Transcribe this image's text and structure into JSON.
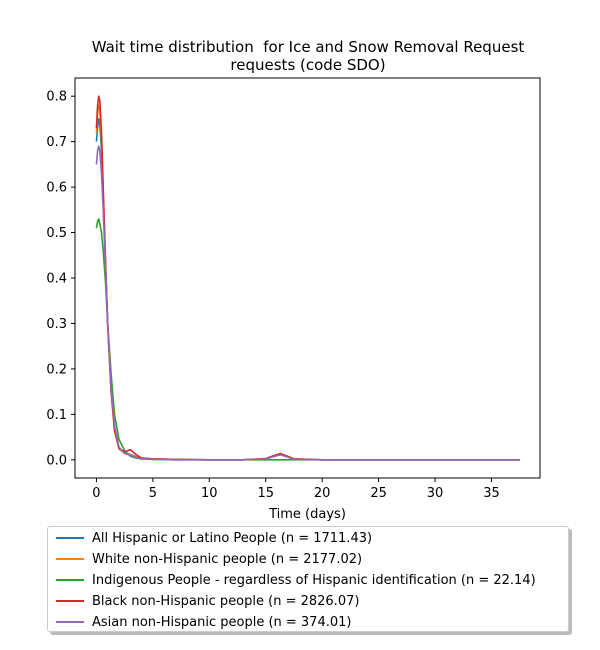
{
  "chart_data": {
    "type": "line",
    "title": "Wait time distribution  for Ice and Snow Removal Request\nrequests (code SDO)",
    "xlabel": "Time (days)",
    "ylabel": "",
    "xlim": [
      -1.9,
      39.3
    ],
    "ylim": [
      -0.04,
      0.84
    ],
    "xticks": [
      0,
      5,
      10,
      15,
      20,
      25,
      30,
      35
    ],
    "yticks": [
      0.0,
      0.1,
      0.2,
      0.3,
      0.4,
      0.5,
      0.6,
      0.7,
      0.8
    ],
    "xtick_labels": [
      "0",
      "5",
      "10",
      "15",
      "20",
      "25",
      "30",
      "35"
    ],
    "ytick_labels": [
      "0.0",
      "0.1",
      "0.2",
      "0.3",
      "0.4",
      "0.5",
      "0.6",
      "0.7",
      "0.8"
    ],
    "grid": false,
    "legend_position": "below",
    "series": [
      {
        "name": "All Hispanic or Latino People (n = 1711.43)",
        "color": "#1f77b4",
        "x": [
          0,
          0.1,
          0.2,
          0.3,
          0.45,
          0.6,
          0.8,
          1.0,
          1.3,
          1.6,
          2.0,
          2.5,
          3.0,
          3.5,
          4,
          5,
          7,
          10,
          13,
          15,
          15.8,
          16.3,
          16.8,
          17.5,
          20,
          25,
          30,
          35,
          37.5
        ],
        "y": [
          0.7,
          0.73,
          0.75,
          0.74,
          0.68,
          0.58,
          0.43,
          0.3,
          0.16,
          0.07,
          0.025,
          0.015,
          0.012,
          0.007,
          0.004,
          0.002,
          0.001,
          0.0,
          0.0,
          0.002,
          0.008,
          0.012,
          0.008,
          0.002,
          0.0,
          0.0,
          0.0,
          0.0,
          0.0
        ]
      },
      {
        "name": "White non-Hispanic people (n = 2177.02)",
        "color": "#ff7f0e",
        "x": [
          0,
          0.1,
          0.2,
          0.3,
          0.45,
          0.6,
          0.8,
          1.0,
          1.3,
          1.6,
          2.0,
          2.5,
          3.0,
          3.5,
          4,
          5,
          7,
          10,
          13,
          15,
          15.8,
          16.3,
          16.8,
          17.5,
          20,
          25,
          30,
          35,
          37.5
        ],
        "y": [
          0.72,
          0.76,
          0.78,
          0.77,
          0.7,
          0.59,
          0.43,
          0.29,
          0.15,
          0.065,
          0.024,
          0.014,
          0.011,
          0.006,
          0.004,
          0.002,
          0.001,
          0.0,
          0.0,
          0.002,
          0.009,
          0.013,
          0.009,
          0.002,
          0.0,
          0.0,
          0.0,
          0.0,
          0.0
        ]
      },
      {
        "name": "Indigenous People - regardless of Hispanic identification (n = 22.14)",
        "color": "#2ca02c",
        "x": [
          0,
          0.1,
          0.2,
          0.3,
          0.45,
          0.6,
          0.8,
          1.0,
          1.3,
          1.6,
          2.0,
          2.5,
          3.0,
          3.5,
          4,
          5,
          7,
          10,
          13,
          15,
          15.8,
          16.3,
          16.8,
          17.5,
          20,
          25,
          30,
          35,
          37.5
        ],
        "y": [
          0.51,
          0.525,
          0.53,
          0.52,
          0.5,
          0.46,
          0.39,
          0.3,
          0.19,
          0.1,
          0.045,
          0.02,
          0.008,
          0.004,
          0.002,
          0.001,
          0.0,
          0.0,
          0.0,
          0.0,
          0.0,
          0.0,
          0.0,
          0.0,
          0.0,
          0.0,
          0.0,
          0.0,
          0.0
        ]
      },
      {
        "name": "Black non-Hispanic people (n = 2826.07)",
        "color": "#d62728",
        "x": [
          0,
          0.1,
          0.2,
          0.3,
          0.45,
          0.6,
          0.8,
          1.0,
          1.3,
          1.6,
          2.0,
          2.5,
          3.0,
          3.5,
          4,
          5,
          7,
          10,
          13,
          15,
          15.8,
          16.3,
          16.8,
          17.5,
          20,
          25,
          30,
          35,
          37.5
        ],
        "y": [
          0.73,
          0.78,
          0.8,
          0.79,
          0.72,
          0.6,
          0.44,
          0.3,
          0.15,
          0.065,
          0.025,
          0.018,
          0.022,
          0.012,
          0.004,
          0.002,
          0.001,
          0.0,
          0.0,
          0.003,
          0.01,
          0.014,
          0.009,
          0.002,
          0.0,
          0.0,
          0.0,
          0.0,
          0.0
        ]
      },
      {
        "name": "Asian non-Hispanic people (n = 374.01)",
        "color": "#9467bd",
        "x": [
          0,
          0.1,
          0.2,
          0.3,
          0.45,
          0.6,
          0.8,
          1.0,
          1.3,
          1.6,
          2.0,
          2.5,
          3.0,
          3.5,
          4,
          5,
          7,
          10,
          13,
          15,
          15.8,
          16.3,
          16.8,
          17.5,
          20,
          25,
          30,
          35,
          37.5
        ],
        "y": [
          0.65,
          0.68,
          0.69,
          0.68,
          0.63,
          0.55,
          0.42,
          0.3,
          0.16,
          0.075,
          0.028,
          0.014,
          0.01,
          0.005,
          0.003,
          0.001,
          0.0,
          0.0,
          0.0,
          0.002,
          0.008,
          0.011,
          0.007,
          0.001,
          0.0,
          0.0,
          0.0,
          0.0,
          0.0
        ]
      }
    ]
  }
}
